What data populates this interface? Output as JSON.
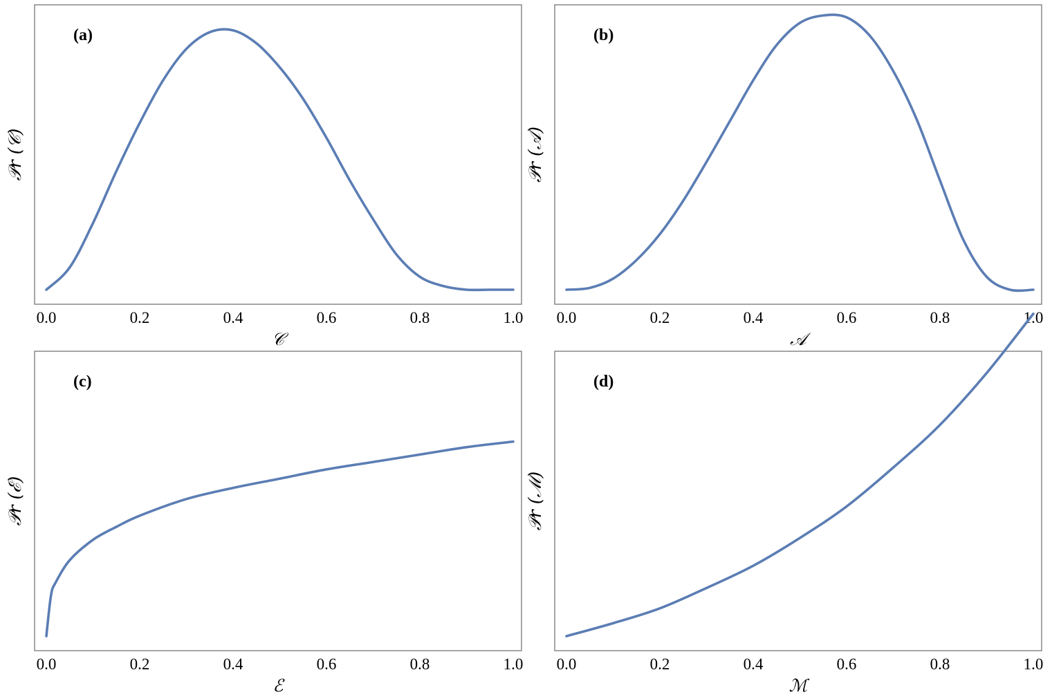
{
  "chart_data": [
    {
      "type": "line",
      "panel_label": "(a)",
      "xlabel": "𝒞",
      "ylabel": "𝒫r (𝒞)",
      "xlim": [
        0,
        1
      ],
      "ylim": [
        0,
        1.53
      ],
      "xticks": [
        "0.0",
        "0.2",
        "0.4",
        "0.6",
        "0.8",
        "1.0"
      ],
      "color": "#5b7db4",
      "x": [
        0.0,
        0.05,
        0.1,
        0.15,
        0.2,
        0.25,
        0.3,
        0.35,
        0.4,
        0.45,
        0.5,
        0.55,
        0.6,
        0.65,
        0.7,
        0.75,
        0.8,
        0.85,
        0.9,
        0.95,
        1.0
      ],
      "y": [
        0.0,
        0.12,
        0.36,
        0.64,
        0.9,
        1.13,
        1.3,
        1.39,
        1.4,
        1.33,
        1.2,
        1.03,
        0.82,
        0.59,
        0.38,
        0.19,
        0.07,
        0.02,
        0.0,
        0.0,
        0.0
      ]
    },
    {
      "type": "line",
      "panel_label": "(b)",
      "xlabel": "𝒜",
      "ylabel": "𝒫r (𝒜)",
      "xlim": [
        0,
        1
      ],
      "ylim": [
        0,
        1.53
      ],
      "xticks": [
        "0.0",
        "0.2",
        "0.4",
        "0.6",
        "0.8",
        "1.0"
      ],
      "color": "#5b7db4",
      "x": [
        0.0,
        0.05,
        0.1,
        0.15,
        0.2,
        0.25,
        0.3,
        0.35,
        0.4,
        0.45,
        0.5,
        0.55,
        0.6,
        0.65,
        0.7,
        0.75,
        0.8,
        0.85,
        0.9,
        0.95,
        1.0
      ],
      "y": [
        0.0,
        0.01,
        0.06,
        0.16,
        0.3,
        0.48,
        0.69,
        0.91,
        1.13,
        1.32,
        1.44,
        1.48,
        1.47,
        1.37,
        1.18,
        0.92,
        0.59,
        0.27,
        0.07,
        0.0,
        0.0
      ]
    },
    {
      "type": "line",
      "panel_label": "(c)",
      "xlabel": "ℰ",
      "ylabel": "𝒫r (ℰ)",
      "xlim": [
        0,
        1
      ],
      "ylim": [
        0,
        1.53
      ],
      "xticks": [
        "0.0",
        "0.2",
        "0.4",
        "0.6",
        "0.8",
        "1.0"
      ],
      "color": "#5b7db4",
      "x": [
        0.0,
        0.01,
        0.02,
        0.05,
        0.1,
        0.15,
        0.2,
        0.3,
        0.4,
        0.5,
        0.6,
        0.7,
        0.8,
        0.9,
        1.0
      ],
      "y": [
        0.0,
        0.22,
        0.29,
        0.41,
        0.52,
        0.59,
        0.65,
        0.74,
        0.8,
        0.85,
        0.9,
        0.94,
        0.98,
        1.02,
        1.05
      ]
    },
    {
      "type": "line",
      "panel_label": "(d)",
      "xlabel": "ℳ",
      "ylabel": "𝒫r (ℳ)",
      "xlim": [
        0,
        1
      ],
      "ylim": [
        0,
        1.53
      ],
      "xticks": [
        "0.0",
        "0.2",
        "0.4",
        "0.6",
        "0.8",
        "1.0"
      ],
      "color": "#5b7db4",
      "x": [
        0.0,
        0.1,
        0.2,
        0.3,
        0.4,
        0.5,
        0.6,
        0.7,
        0.8,
        0.9,
        1.0
      ],
      "y": [
        0.0,
        0.07,
        0.15,
        0.26,
        0.38,
        0.53,
        0.7,
        0.91,
        1.14,
        1.42,
        1.74
      ]
    }
  ]
}
